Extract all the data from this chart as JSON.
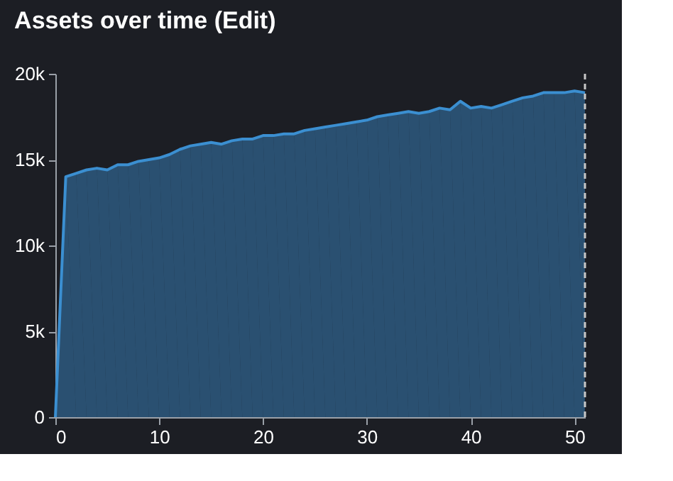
{
  "chart_data": {
    "type": "area",
    "title": "Assets over time (Edit)",
    "x": [
      0,
      1,
      2,
      3,
      4,
      5,
      6,
      7,
      8,
      9,
      10,
      11,
      12,
      13,
      14,
      15,
      16,
      17,
      18,
      19,
      20,
      21,
      22,
      23,
      24,
      25,
      26,
      27,
      28,
      29,
      30,
      31,
      32,
      33,
      34,
      35,
      36,
      37,
      38,
      39,
      40,
      41,
      42,
      43,
      44,
      45,
      46,
      47,
      48,
      49,
      50,
      51
    ],
    "series": [
      {
        "color": "#3b8fd1",
        "values": [
          0,
          14000,
          14200,
          14400,
          14500,
          14400,
          14700,
          14700,
          14900,
          15000,
          15100,
          15300,
          15600,
          15800,
          15900,
          16000,
          15900,
          16100,
          16200,
          16200,
          16400,
          16400,
          16500,
          16500,
          16700,
          16800,
          16900,
          17000,
          17100,
          17200,
          17300,
          17500,
          17600,
          17700,
          17800,
          17700,
          17800,
          18000,
          17900,
          18400,
          18000,
          18100,
          18000,
          18200,
          18400,
          18600,
          18700,
          18900,
          18900,
          18900,
          19000,
          18900
        ]
      }
    ],
    "xlim": [
      0,
      51
    ],
    "xticks": [
      0,
      10,
      20,
      30,
      40,
      50
    ],
    "ylim": [
      0,
      20000
    ],
    "yticks": [
      0,
      {
        "value": 5000,
        "label": "5k"
      },
      {
        "value": 10000,
        "label": "10k"
      },
      {
        "value": 15000,
        "label": "15k"
      },
      {
        "value": 20000,
        "label": "20k"
      }
    ],
    "ref_lines": [
      {
        "axis": "x",
        "value": 51,
        "color": "#c8c8c8",
        "line_style": "dashed"
      }
    ]
  }
}
